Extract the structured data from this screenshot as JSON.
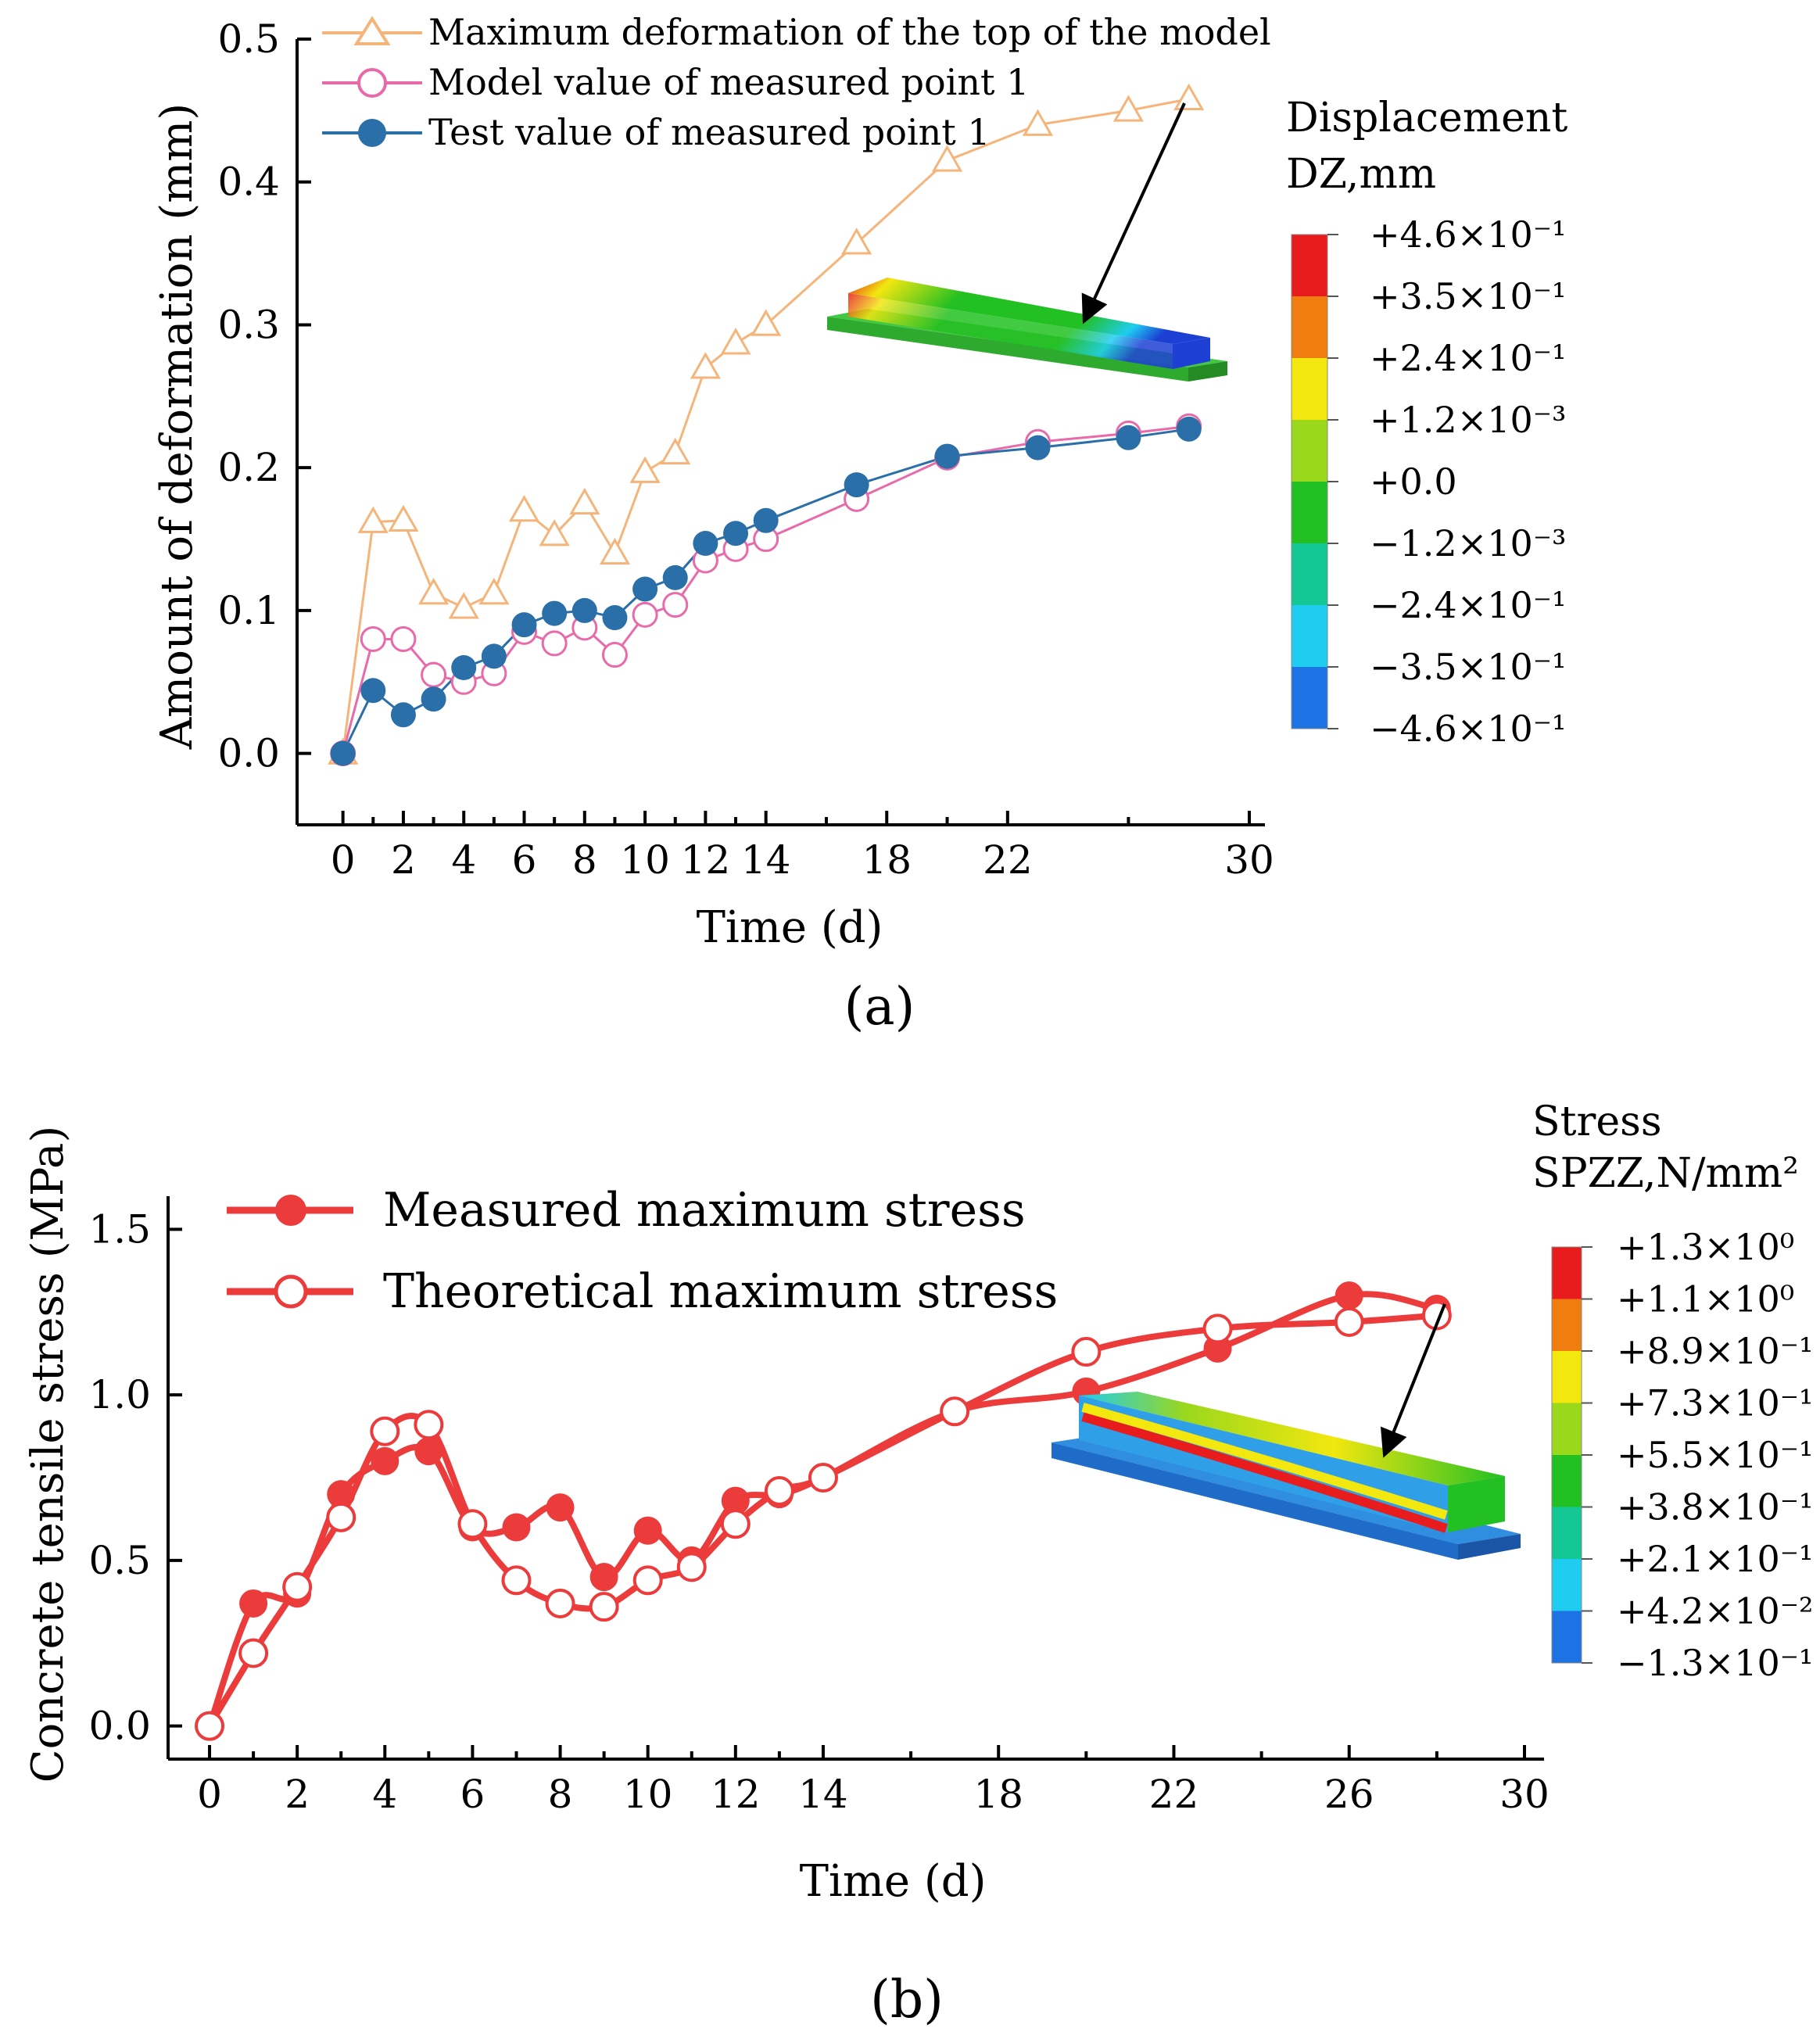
{
  "colors": {
    "max_deformation": "#f5b57a",
    "model_value": "#e86aa8",
    "test_value": "#2a6fa8",
    "stress": "#ec3b3b"
  },
  "chart_data": [
    {
      "id": "a",
      "type": "line",
      "panel_label": "(a)",
      "xlabel": "Time (d)",
      "ylabel": "Amount of deformation (mm)",
      "xlim": [
        -1,
        30
      ],
      "ylim": [
        -0.05,
        0.5
      ],
      "xticks": [
        0,
        2,
        4,
        6,
        8,
        10,
        12,
        14,
        18,
        22,
        30
      ],
      "yticks": [
        0.0,
        0.1,
        0.2,
        0.3,
        0.4,
        0.5
      ],
      "ytick_labels": [
        "0.0",
        "0.1",
        "0.2",
        "0.3",
        "0.4",
        "0.5"
      ],
      "legend_position": "top-left",
      "series": [
        {
          "name": "Maximum deformation of the top of the model",
          "marker": "triangle-open",
          "color": "#f5b57a",
          "x": [
            0,
            1,
            2,
            3,
            4,
            5,
            6,
            7,
            8,
            9,
            10,
            11,
            12,
            13,
            14,
            17,
            20,
            23,
            26,
            28
          ],
          "y": [
            0.0,
            0.162,
            0.163,
            0.112,
            0.102,
            0.112,
            0.17,
            0.153,
            0.175,
            0.14,
            0.197,
            0.21,
            0.27,
            0.287,
            0.3,
            0.357,
            0.415,
            0.44,
            0.45,
            0.458
          ]
        },
        {
          "name": "Model value of measured point 1",
          "marker": "circle-open",
          "color": "#e86aa8",
          "x": [
            0,
            1,
            2,
            3,
            4,
            5,
            6,
            7,
            8,
            9,
            10,
            11,
            12,
            13,
            14,
            17,
            20,
            23,
            26,
            28
          ],
          "y": [
            0.0,
            0.08,
            0.08,
            0.055,
            0.05,
            0.056,
            0.085,
            0.077,
            0.088,
            0.069,
            0.097,
            0.104,
            0.135,
            0.143,
            0.15,
            0.178,
            0.207,
            0.218,
            0.224,
            0.229
          ]
        },
        {
          "name": "Test value of measured point 1",
          "marker": "circle-filled",
          "color": "#2a6fa8",
          "x": [
            0,
            1,
            2,
            3,
            4,
            5,
            6,
            7,
            8,
            9,
            10,
            11,
            12,
            13,
            14,
            17,
            20,
            23,
            26,
            28
          ],
          "y": [
            0.0,
            0.044,
            0.027,
            0.038,
            0.06,
            0.068,
            0.09,
            0.098,
            0.1,
            0.095,
            0.115,
            0.123,
            0.147,
            0.154,
            0.163,
            0.188,
            0.208,
            0.214,
            0.221,
            0.227
          ]
        }
      ],
      "colorbar": {
        "title1": "Displacement",
        "title2": "DZ,mm",
        "labels": [
          "+4.6×10⁻¹",
          "+3.5×10⁻¹",
          "+2.4×10⁻¹",
          "+1.2×10⁻³",
          "+0.0",
          "−1.2×10⁻³",
          "−2.4×10⁻¹",
          "−3.5×10⁻¹",
          "−4.6×10⁻¹"
        ],
        "colors": [
          "#e81c1c",
          "#f07d10",
          "#f2e70f",
          "#9ad81c",
          "#22c022",
          "#14c896",
          "#1ecdf0",
          "#1d72e4"
        ]
      }
    },
    {
      "id": "b",
      "type": "line",
      "panel_label": "(b)",
      "xlabel": "Time (d)",
      "ylabel": "Concrete tensile stress (MPa)",
      "xlim": [
        -0.5,
        30
      ],
      "ylim": [
        -0.1,
        1.6
      ],
      "xticks": [
        0,
        2,
        4,
        6,
        8,
        10,
        12,
        14,
        18,
        22,
        26,
        30
      ],
      "yticks": [
        0.0,
        0.5,
        1.0,
        1.5
      ],
      "ytick_labels": [
        "0.0",
        "0.5",
        "1.0",
        "1.5"
      ],
      "legend_position": "top-left",
      "series": [
        {
          "name": "Measured maximum stress",
          "marker": "circle-filled",
          "color": "#ec3b3b",
          "x": [
            0,
            1,
            2,
            3,
            4,
            5,
            6,
            7,
            8,
            9,
            10,
            11,
            12,
            13,
            14,
            17,
            20,
            23,
            26,
            28
          ],
          "y": [
            0.0,
            0.37,
            0.4,
            0.7,
            0.8,
            0.83,
            0.6,
            0.6,
            0.66,
            0.45,
            0.59,
            0.5,
            0.68,
            0.7,
            0.75,
            0.95,
            1.01,
            1.14,
            1.3,
            1.26
          ]
        },
        {
          "name": "Theoretical maximum stress",
          "marker": "circle-open",
          "color": "#ec3b3b",
          "x": [
            0,
            1,
            2,
            3,
            4,
            5,
            6,
            7,
            8,
            9,
            10,
            11,
            12,
            13,
            14,
            17,
            20,
            23,
            26,
            28
          ],
          "y": [
            0.0,
            0.22,
            0.42,
            0.63,
            0.89,
            0.91,
            0.61,
            0.44,
            0.37,
            0.36,
            0.44,
            0.48,
            0.61,
            0.71,
            0.75,
            0.95,
            1.13,
            1.2,
            1.22,
            1.24
          ]
        }
      ],
      "colorbar": {
        "title1": "Stress",
        "title2": "SPZZ,N/mm²",
        "labels": [
          "+1.3×10⁰",
          "+1.1×10⁰",
          "+8.9×10⁻¹",
          "+7.3×10⁻¹",
          "+5.5×10⁻¹",
          "+3.8×10⁻¹",
          "+2.1×10⁻¹",
          "+4.2×10⁻²",
          "−1.3×10⁻¹"
        ],
        "colors": [
          "#e81c1c",
          "#f07d10",
          "#f2e70f",
          "#9ad81c",
          "#22c022",
          "#14c896",
          "#1ecdf0",
          "#1d72e4"
        ]
      }
    }
  ]
}
